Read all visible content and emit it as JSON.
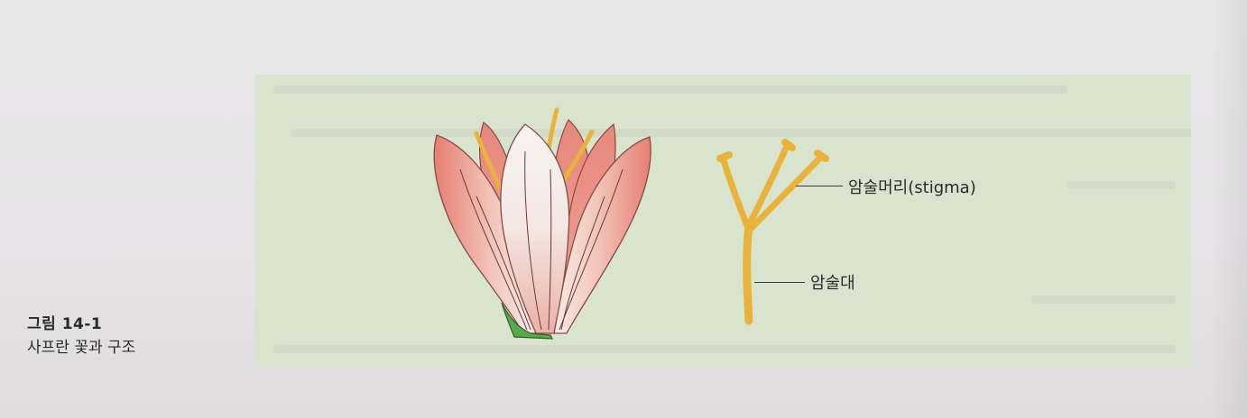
{
  "figure": {
    "number": "그림 14-1",
    "title": "사프란 꽃과 구조"
  },
  "labels": {
    "stigma": "암술머리(stigma)",
    "style": "암술대"
  },
  "colors": {
    "panel": "#d9e4cf",
    "petal": "#e8877c",
    "petal_light": "#f6ece8",
    "stigma": "#e9b23a",
    "sepal": "#5aa84e"
  }
}
